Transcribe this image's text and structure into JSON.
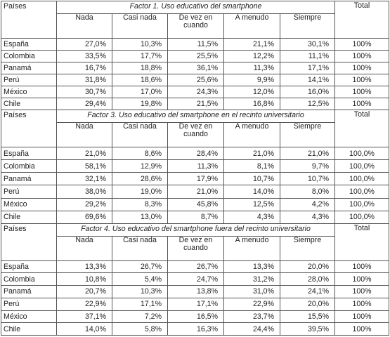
{
  "sections": [
    {
      "country_header": "Países",
      "title": "Factor 1. Uso educativo del smartphone",
      "total_header": "Total",
      "columns": [
        "Nada",
        "Casi nada",
        "De vez en cuando",
        "A menudo",
        "Siempre"
      ],
      "rows": [
        {
          "country": "España",
          "values": [
            "27,0%",
            "10,3%",
            "11,5%",
            "21,1%",
            "30,1%"
          ],
          "total": "100%"
        },
        {
          "country": "Colombia",
          "values": [
            "33,5%",
            "17,7%",
            "25,5%",
            "12,2%",
            "11,1%"
          ],
          "total": "100%"
        },
        {
          "country": "Panamá",
          "values": [
            "16,7%",
            "18,8%",
            "36,1%",
            "11,3%",
            "17,1%"
          ],
          "total": "100%"
        },
        {
          "country": "Perú",
          "values": [
            "31,8%",
            "18,6%",
            "25,6%",
            "9,9%",
            "14,1%"
          ],
          "total": "100%"
        },
        {
          "country": "México",
          "values": [
            "30,7%",
            "17,0%",
            "24,3%",
            "12,0%",
            "16,0%"
          ],
          "total": "100%"
        },
        {
          "country": "Chile",
          "values": [
            "29,4%",
            "19,8%",
            "21,5%",
            "16,8%",
            "12,5%"
          ],
          "total": "100%"
        }
      ]
    },
    {
      "country_header": "Países",
      "title": "Factor 3. Uso educativo del smartphone en el recinto universitario",
      "total_header": "Total",
      "columns": [
        "Nada",
        "Casi nada",
        "De vez en cuando",
        "A menudo",
        "Siempre"
      ],
      "rows": [
        {
          "country": "España",
          "values": [
            "21,0%",
            "8,6%",
            "28,4%",
            "21,0%",
            "21,0%"
          ],
          "total": "100,0%"
        },
        {
          "country": "Colombia",
          "values": [
            "58,1%",
            "12,9%",
            "11,3%",
            "8,1%",
            "9,7%"
          ],
          "total": "100,0%"
        },
        {
          "country": "Panamá",
          "values": [
            "32,1%",
            "28,6%",
            "17,9%",
            "10,7%",
            "10,7%"
          ],
          "total": "100,0%"
        },
        {
          "country": "Perú",
          "values": [
            "38,0%",
            "19,0%",
            "21,0%",
            "14,0%",
            "8,0%"
          ],
          "total": "100,0%"
        },
        {
          "country": "México",
          "values": [
            "29,2%",
            "8,3%",
            "45,8%",
            "12,5%",
            "4,2%"
          ],
          "total": "100,0%"
        },
        {
          "country": "Chile",
          "values": [
            "69,6%",
            "13,0%",
            "8,7%",
            "4,3%",
            "4,3%"
          ],
          "total": "100,0%"
        }
      ]
    },
    {
      "country_header": "Países",
      "title": "Factor 4. Uso educativo del smartphone fuera del recinto universitario",
      "total_header": "Total",
      "columns": [
        "Nada",
        "Casi nada",
        "De vez en cuando",
        "A menudo",
        "Siempre"
      ],
      "rows": [
        {
          "country": "España",
          "values": [
            "13,3%",
            "26,7%",
            "26,7%",
            "13,3%",
            "20,0%"
          ],
          "total": "100%"
        },
        {
          "country": "Colombia",
          "values": [
            "10,8%",
            "5,4%",
            "24,7%",
            "31,2%",
            "28,0%"
          ],
          "total": "100%"
        },
        {
          "country": "Panamá",
          "values": [
            "20,7%",
            "10,3%",
            "13,8%",
            "31,0%",
            "24,1%"
          ],
          "total": "100%"
        },
        {
          "country": "Perú",
          "values": [
            "22,9%",
            "17,1%",
            "17,1%",
            "22,9%",
            "20,0%"
          ],
          "total": "100%"
        },
        {
          "country": "México",
          "values": [
            "37,1%",
            "7,2%",
            "16,5%",
            "23,7%",
            "15,5%"
          ],
          "total": "100%"
        },
        {
          "country": "Chile",
          "values": [
            "14,0%",
            "5,8%",
            "16,3%",
            "24,4%",
            "39,5%"
          ],
          "total": "100%"
        }
      ]
    }
  ]
}
